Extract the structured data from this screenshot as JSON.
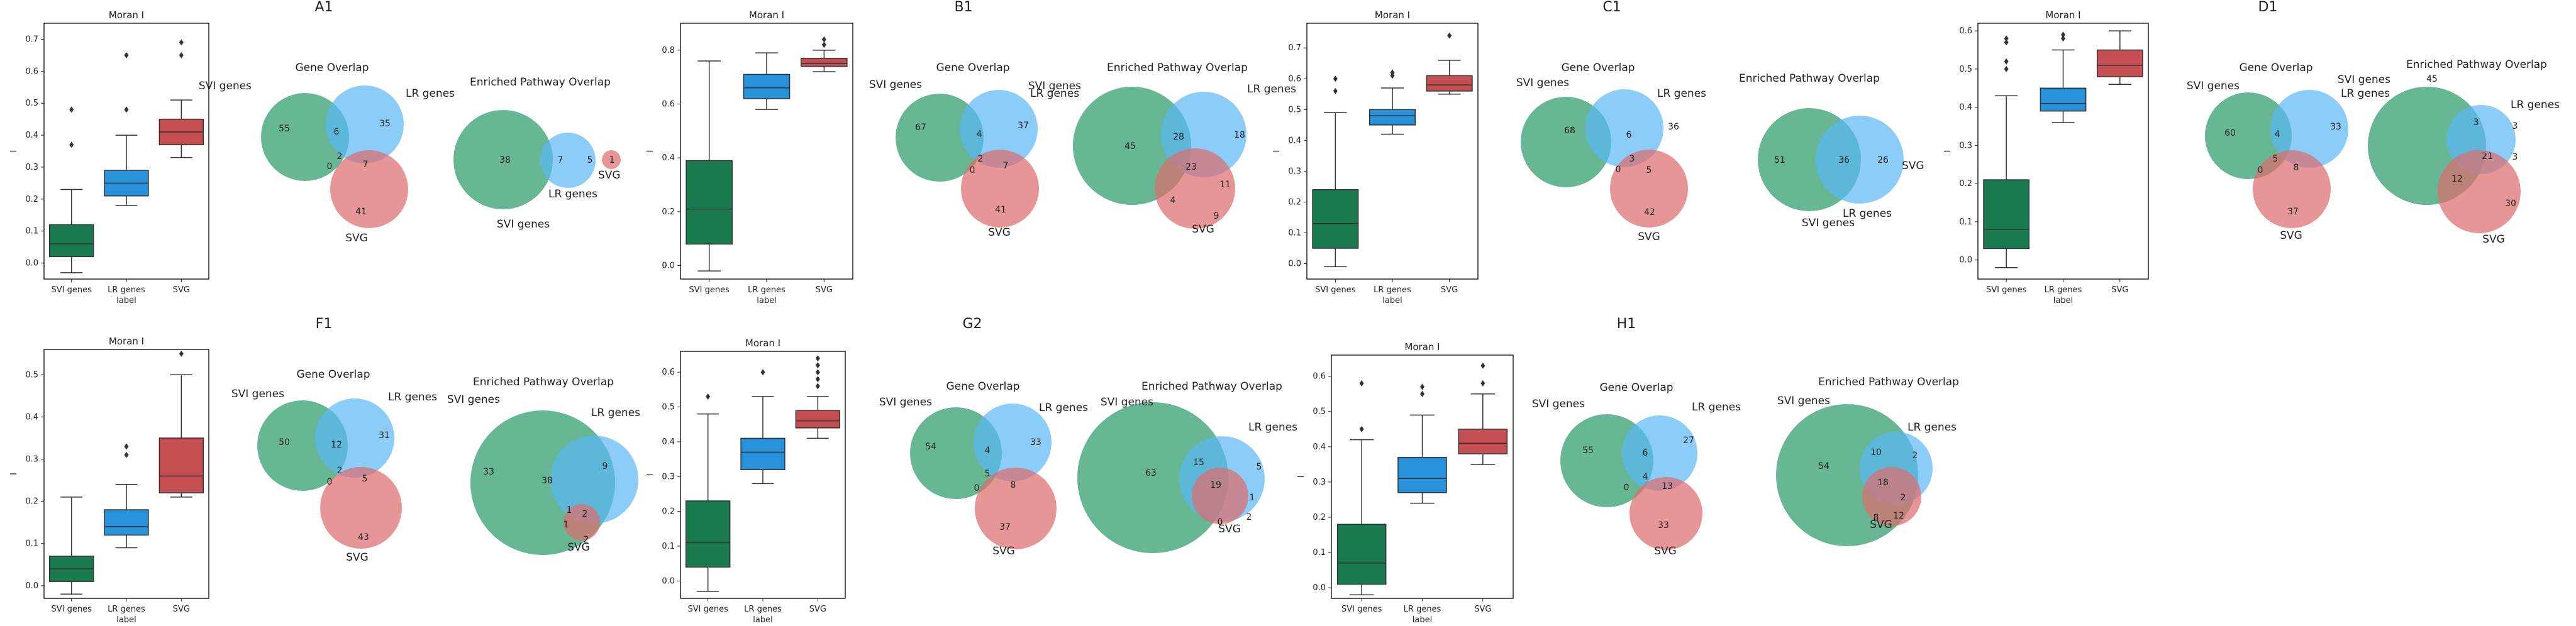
{
  "colors": {
    "svi": "#1a7a4f",
    "lr": "#2791d9",
    "svg": "#c44e52",
    "venn_svi": "#5fb38f",
    "venn_lr": "#5ab6f6",
    "venn_svg": "#dc6e6e"
  },
  "chart_data": [
    {
      "panel": "A1",
      "title": "A1",
      "boxplot": {
        "type": "box",
        "title": "Moran I",
        "xlabel": "label",
        "ylabel": "I",
        "categories": [
          "SVI genes",
          "LR genes",
          "SVG"
        ],
        "ylim": [
          -0.05,
          0.75
        ],
        "yticks": [
          0.0,
          0.1,
          0.2,
          0.3,
          0.4,
          0.5,
          0.6,
          0.7
        ],
        "boxes": [
          {
            "min": -0.03,
            "q1": 0.02,
            "median": 0.06,
            "q3": 0.12,
            "max": 0.23,
            "outliers": [
              0.37,
              0.48
            ]
          },
          {
            "min": 0.18,
            "q1": 0.21,
            "median": 0.25,
            "q3": 0.29,
            "max": 0.4,
            "outliers": [
              0.48,
              0.65
            ]
          },
          {
            "min": 0.33,
            "q1": 0.37,
            "median": 0.41,
            "q3": 0.45,
            "max": 0.51,
            "outliers": [
              0.65,
              0.69
            ]
          }
        ]
      },
      "gene_overlap": {
        "title": "Gene Overlap",
        "labels": [
          "SVI genes",
          "LR genes",
          "SVG"
        ],
        "regions": {
          "a": "55",
          "b": "35",
          "ab": "6",
          "c": "41",
          "ac": "0",
          "bc": "7",
          "abc": "2"
        }
      },
      "pathway_overlap": {
        "title": "Enriched Pathway Overlap",
        "labels": [
          "SVI genes",
          "LR genes",
          "SVG"
        ],
        "regions": {
          "a": "38",
          "b": "7",
          "ab": "5",
          "c": "1",
          "ac": "",
          "bc": "",
          "abc": ""
        }
      }
    },
    {
      "panel": "B1",
      "title": "B1",
      "boxplot": {
        "type": "box",
        "title": "Moran I",
        "xlabel": "label",
        "ylabel": "I",
        "categories": [
          "SVI genes",
          "LR genes",
          "SVG"
        ],
        "ylim": [
          -0.05,
          0.9
        ],
        "yticks": [
          0.0,
          0.2,
          0.4,
          0.6,
          0.8
        ],
        "boxes": [
          {
            "min": -0.02,
            "q1": 0.08,
            "median": 0.21,
            "q3": 0.39,
            "max": 0.76,
            "outliers": []
          },
          {
            "min": 0.58,
            "q1": 0.62,
            "median": 0.66,
            "q3": 0.71,
            "max": 0.79,
            "outliers": []
          },
          {
            "min": 0.72,
            "q1": 0.74,
            "median": 0.75,
            "q3": 0.77,
            "max": 0.8,
            "outliers": [
              0.82,
              0.84
            ]
          }
        ]
      },
      "gene_overlap": {
        "title": "Gene Overlap",
        "labels": [
          "SVI genes",
          "LR genes",
          "SVG"
        ],
        "regions": {
          "a": "67",
          "b": "37",
          "ab": "4",
          "c": "41",
          "ac": "0",
          "bc": "7",
          "abc": "2"
        }
      },
      "pathway_overlap": {
        "title": "Enriched Pathway Overlap",
        "labels": [
          "SVI genes",
          "LR genes",
          "SVG"
        ],
        "regions": {
          "a": "45",
          "b": "18",
          "ab": "28",
          "c": "9",
          "ac": "4",
          "bc": "11",
          "abc": "23"
        }
      }
    },
    {
      "panel": "C1",
      "title": "C1",
      "boxplot": {
        "type": "box",
        "title": "Moran I",
        "xlabel": "label",
        "ylabel": "I",
        "categories": [
          "SVI genes",
          "LR genes",
          "SVG"
        ],
        "ylim": [
          -0.05,
          0.78
        ],
        "yticks": [
          0.0,
          0.1,
          0.2,
          0.3,
          0.4,
          0.5,
          0.6,
          0.7
        ],
        "boxes": [
          {
            "min": -0.01,
            "q1": 0.05,
            "median": 0.13,
            "q3": 0.24,
            "max": 0.49,
            "outliers": [
              0.56,
              0.6
            ]
          },
          {
            "min": 0.42,
            "q1": 0.45,
            "median": 0.48,
            "q3": 0.5,
            "max": 0.57,
            "outliers": [
              0.61,
              0.62
            ]
          },
          {
            "min": 0.55,
            "q1": 0.56,
            "median": 0.58,
            "q3": 0.61,
            "max": 0.66,
            "outliers": [
              0.74
            ]
          }
        ]
      },
      "gene_overlap": {
        "title": "Gene Overlap",
        "labels": [
          "SVI genes",
          "LR genes",
          "SVG"
        ],
        "regions": {
          "a": "68",
          "b": "36",
          "ab": "6",
          "c": "42",
          "ac": "0",
          "bc": "5",
          "abc": "3"
        }
      },
      "pathway_overlap": {
        "title": "Enriched Pathway Overlap",
        "labels": [
          "SVI genes",
          "LR genes",
          "SVG"
        ],
        "regions": {
          "a": "51",
          "b": "26",
          "ab": "36",
          "c": "",
          "ac": "",
          "bc": "",
          "abc": ""
        }
      }
    },
    {
      "panel": "D1",
      "title": "D1",
      "boxplot": {
        "type": "box",
        "title": "Moran I",
        "xlabel": "label",
        "ylabel": "I",
        "categories": [
          "SVI genes",
          "LR genes",
          "SVG"
        ],
        "ylim": [
          -0.05,
          0.62
        ],
        "yticks": [
          0.0,
          0.1,
          0.2,
          0.3,
          0.4,
          0.5,
          0.6
        ],
        "boxes": [
          {
            "min": -0.02,
            "q1": 0.03,
            "median": 0.08,
            "q3": 0.21,
            "max": 0.43,
            "outliers": [
              0.5,
              0.52,
              0.57,
              0.58
            ]
          },
          {
            "min": 0.36,
            "q1": 0.39,
            "median": 0.41,
            "q3": 0.45,
            "max": 0.55,
            "outliers": [
              0.58,
              0.59
            ]
          },
          {
            "min": 0.46,
            "q1": 0.48,
            "median": 0.51,
            "q3": 0.55,
            "max": 0.6,
            "outliers": []
          }
        ]
      },
      "gene_overlap": {
        "title": "Gene Overlap",
        "labels": [
          "SVI genes",
          "LR genes",
          "SVG"
        ],
        "regions": {
          "a": "60",
          "b": "33",
          "ab": "4",
          "c": "37",
          "ac": "0",
          "bc": "8",
          "abc": "5"
        }
      },
      "pathway_overlap": {
        "title": "Enriched Pathway Overlap",
        "labels": [
          "SVI genes",
          "LR genes",
          "SVG"
        ],
        "regions": {
          "a": "45",
          "b": "3",
          "ab": "3",
          "c": "30",
          "ac": "12",
          "bc": "3",
          "abc": "21"
        }
      }
    },
    {
      "panel": "F1",
      "title": "F1",
      "boxplot": {
        "type": "box",
        "title": "Moran I",
        "xlabel": "label",
        "ylabel": "I",
        "categories": [
          "SVI genes",
          "LR genes",
          "SVG"
        ],
        "ylim": [
          -0.03,
          0.56
        ],
        "yticks": [
          0.0,
          0.1,
          0.2,
          0.3,
          0.4,
          0.5
        ],
        "boxes": [
          {
            "min": -0.02,
            "q1": 0.01,
            "median": 0.04,
            "q3": 0.07,
            "max": 0.21,
            "outliers": []
          },
          {
            "min": 0.09,
            "q1": 0.12,
            "median": 0.14,
            "q3": 0.18,
            "max": 0.24,
            "outliers": [
              0.31,
              0.33
            ]
          },
          {
            "min": 0.21,
            "q1": 0.22,
            "median": 0.26,
            "q3": 0.35,
            "max": 0.5,
            "outliers": [
              0.55
            ]
          }
        ]
      },
      "gene_overlap": {
        "title": "Gene Overlap",
        "labels": [
          "SVI genes",
          "LR genes",
          "SVG"
        ],
        "regions": {
          "a": "50",
          "b": "31",
          "ab": "12",
          "c": "43",
          "ac": "0",
          "bc": "5",
          "abc": "2"
        }
      },
      "pathway_overlap": {
        "title": "Enriched Pathway Overlap",
        "labels": [
          "SVI genes",
          "LR genes",
          "SVG"
        ],
        "regions": {
          "a": "33",
          "b": "9",
          "ab": "38",
          "c": "2",
          "ac": "1",
          "bc": "2",
          "abc": "1"
        }
      }
    },
    {
      "panel": "G2",
      "title": "G2",
      "boxplot": {
        "type": "box",
        "title": "Moran I",
        "xlabel": "label",
        "ylabel": "I",
        "categories": [
          "SVI genes",
          "LR genes",
          "SVG"
        ],
        "ylim": [
          -0.05,
          0.66
        ],
        "yticks": [
          0.0,
          0.1,
          0.2,
          0.3,
          0.4,
          0.5,
          0.6
        ],
        "boxes": [
          {
            "min": -0.03,
            "q1": 0.04,
            "median": 0.11,
            "q3": 0.23,
            "max": 0.48,
            "outliers": [
              0.53
            ]
          },
          {
            "min": 0.28,
            "q1": 0.32,
            "median": 0.37,
            "q3": 0.41,
            "max": 0.53,
            "outliers": [
              0.6
            ]
          },
          {
            "min": 0.41,
            "q1": 0.44,
            "median": 0.46,
            "q3": 0.49,
            "max": 0.53,
            "outliers": [
              0.56,
              0.58,
              0.6,
              0.62,
              0.64
            ]
          }
        ]
      },
      "gene_overlap": {
        "title": "Gene Overlap",
        "labels": [
          "SVI genes",
          "LR genes",
          "SVG"
        ],
        "regions": {
          "a": "54",
          "b": "33",
          "ab": "4",
          "c": "37",
          "ac": "0",
          "bc": "8",
          "abc": "5"
        }
      },
      "pathway_overlap": {
        "title": "Enriched Pathway Overlap",
        "labels": [
          "SVI genes",
          "LR genes",
          "SVG"
        ],
        "regions": {
          "a": "63",
          "b": "5",
          "ab": "15",
          "c": "2",
          "ac": "0",
          "bc": "1",
          "abc": "19"
        }
      }
    },
    {
      "panel": "H1",
      "title": "H1",
      "boxplot": {
        "type": "box",
        "title": "Moran I",
        "xlabel": "label",
        "ylabel": "I",
        "categories": [
          "SVI genes",
          "LR genes",
          "SVG"
        ],
        "ylim": [
          -0.03,
          0.66
        ],
        "yticks": [
          0.0,
          0.1,
          0.2,
          0.3,
          0.4,
          0.5,
          0.6
        ],
        "boxes": [
          {
            "min": -0.02,
            "q1": 0.01,
            "median": 0.07,
            "q3": 0.18,
            "max": 0.42,
            "outliers": [
              0.45,
              0.58
            ]
          },
          {
            "min": 0.24,
            "q1": 0.27,
            "median": 0.31,
            "q3": 0.37,
            "max": 0.49,
            "outliers": [
              0.55,
              0.57
            ]
          },
          {
            "min": 0.35,
            "q1": 0.38,
            "median": 0.41,
            "q3": 0.45,
            "max": 0.55,
            "outliers": [
              0.58,
              0.63
            ]
          }
        ]
      },
      "gene_overlap": {
        "title": "Gene Overlap",
        "labels": [
          "SVI genes",
          "LR genes",
          "SVG"
        ],
        "regions": {
          "a": "55",
          "b": "27",
          "ab": "6",
          "c": "33",
          "ac": "0",
          "bc": "13",
          "abc": "4"
        }
      },
      "pathway_overlap": {
        "title": "Enriched Pathway Overlap",
        "labels": [
          "SVI genes",
          "LR genes",
          "SVG"
        ],
        "regions": {
          "a": "54",
          "b": "2",
          "ab": "10",
          "c": "12",
          "ac": "8",
          "bc": "2",
          "abc": "18"
        }
      }
    }
  ]
}
